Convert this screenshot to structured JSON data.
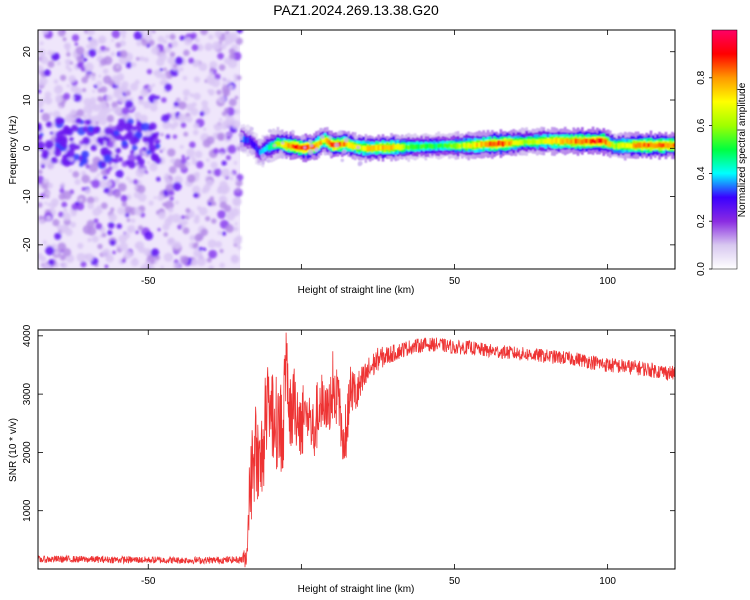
{
  "title": "PAZ1.2024.269.13.38.G20",
  "chart_data": [
    {
      "type": "heatmap",
      "xlabel": "Height of straight line (km)",
      "ylabel": "Frequency (Hz)",
      "xlim": [
        -86,
        122
      ],
      "ylim": [
        -25,
        24.5
      ],
      "xticks": [
        -50,
        0,
        50,
        100
      ],
      "xtick_labels": [
        "-50",
        "",
        "50",
        "100"
      ],
      "yticks": [
        -20,
        -10,
        0,
        10,
        20
      ],
      "ytick_labels": [
        "-20",
        "-10",
        "0",
        "10",
        "20"
      ],
      "colorbar": {
        "label": "Normalized spectral amplitude",
        "range": [
          0,
          1
        ],
        "ticks": [
          0,
          0.2,
          0.4,
          0.6,
          0.8
        ],
        "tick_labels": [
          "0.0",
          "0.2",
          "0.4",
          "0.6",
          "0.8"
        ],
        "colors": [
          "#ffffff",
          "#d8c8f0",
          "#8a2be2",
          "#3a00ff",
          "#00ffff",
          "#00ff40",
          "#a0ff00",
          "#ffff00",
          "#ff9900",
          "#ff0000",
          "#ff0066"
        ]
      },
      "noise_region": {
        "x_range": [
          -86,
          -20
        ],
        "freq_range": [
          -25,
          24.5
        ]
      },
      "signal_ridge": {
        "x": [
          -20,
          -17,
          -14,
          -12,
          -8,
          -4,
          0,
          4,
          7,
          10,
          14,
          18,
          22,
          28,
          35,
          45,
          55,
          65,
          72,
          80,
          90,
          98,
          102,
          110,
          122
        ],
        "freq": [
          2,
          1.5,
          -1,
          0,
          1,
          0.5,
          0,
          0.3,
          1.8,
          0.6,
          1,
          0.2,
          0,
          0.2,
          0.3,
          0.5,
          0.6,
          1,
          1.3,
          1.5,
          1.4,
          1.5,
          0.5,
          0.6,
          0.6
        ],
        "amplitude": [
          0.35,
          0.3,
          0.35,
          0.4,
          0.6,
          0.85,
          0.9,
          0.85,
          0.7,
          0.9,
          0.8,
          0.7,
          0.75,
          0.8,
          0.55,
          0.5,
          0.7,
          0.9,
          0.6,
          0.7,
          0.85,
          0.9,
          0.6,
          0.85,
          0.85
        ]
      }
    },
    {
      "type": "line",
      "xlabel": "Height of straight line (km)",
      "ylabel": "SNR (10 * v/v)",
      "xlim": [
        -86,
        122
      ],
      "ylim": [
        0,
        4100
      ],
      "xticks": [
        -50,
        0,
        50,
        100
      ],
      "xtick_labels": [
        "-50",
        "",
        "50",
        "100"
      ],
      "yticks": [
        1000,
        2000,
        3000,
        4000
      ],
      "ytick_labels": [
        "1000",
        "2000",
        "3000",
        "4000"
      ],
      "color": "#ee3333",
      "series": [
        {
          "x": [
            -86,
            -80,
            -70,
            -60,
            -50,
            -40,
            -30,
            -20,
            -18,
            -16,
            -15,
            -14,
            -12,
            -10,
            -8,
            -6,
            -5,
            -4,
            -2,
            0,
            2,
            4,
            6,
            8,
            10,
            12,
            14,
            16,
            18,
            20,
            22,
            25,
            30,
            35,
            40,
            45,
            50,
            55,
            60,
            70,
            80,
            90,
            100,
            110,
            122
          ],
          "y": [
            160,
            170,
            165,
            160,
            155,
            150,
            150,
            160,
            200,
            1800,
            2100,
            1500,
            2300,
            2700,
            2500,
            2400,
            3500,
            2600,
            2800,
            2500,
            2700,
            2300,
            2900,
            2600,
            3000,
            2900,
            2000,
            3100,
            3000,
            3200,
            3400,
            3600,
            3700,
            3800,
            3850,
            3850,
            3800,
            3800,
            3750,
            3700,
            3650,
            3600,
            3500,
            3450,
            3350
          ],
          "noise_amplitude": [
            60,
            60,
            60,
            60,
            60,
            60,
            60,
            60,
            200,
            900,
            900,
            900,
            800,
            800,
            800,
            800,
            700,
            700,
            700,
            600,
            600,
            600,
            600,
            500,
            500,
            500,
            500,
            400,
            400,
            300,
            250,
            200,
            150,
            130,
            120,
            120,
            120,
            120,
            120,
            120,
            120,
            120,
            130,
            130,
            130
          ]
        }
      ]
    }
  ]
}
